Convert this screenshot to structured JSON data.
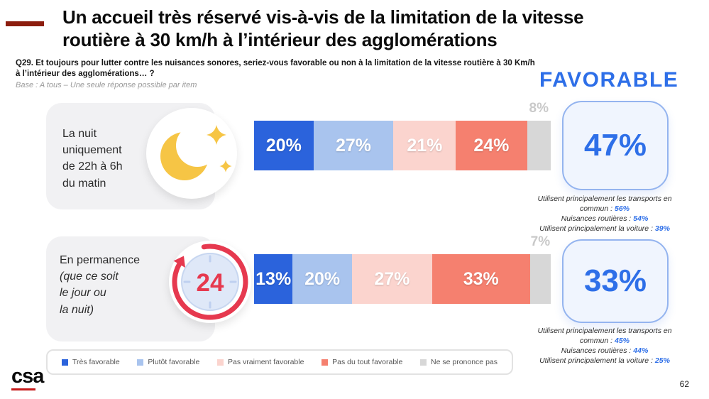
{
  "page": {
    "title_line1": "Un accueil très réservé vis-à-vis de la limitation de la vitesse",
    "title_line2": "routière à 30 km/h à l’intérieur des agglomérations",
    "question_line1": "Q29. Et toujours pour lutter contre les nuisances sonores, seriez-vous favorable ou non à la limitation de la vitesse routière à 30 Km/h",
    "question_line2": "à l’intérieur des agglomérations… ?",
    "base_note": "Base : A tous – Une seule réponse possible par item",
    "favorable_heading": "FAVORABLE",
    "logo_text": "csa",
    "page_number": "62"
  },
  "colors": {
    "accent_bar_red": "#8C1D0E",
    "favorable_blue": "#2E6FE8",
    "nsp_label_gray": "#C9C9C9",
    "row_box_gray": "#F1F1F3",
    "moon_yellow": "#F6C545",
    "clock_red": "#E6394F"
  },
  "chart_data": {
    "type": "bar",
    "stacked": true,
    "orientation": "horizontal",
    "unit": "%",
    "legend": [
      "Très favorable",
      "Plutôt favorable",
      "Pas vraiment favorable",
      "Pas du tout favorable",
      "Ne se prononce pas"
    ],
    "segment_colors": [
      "#2B63DC",
      "#A9C4EE",
      "#FBD4CE",
      "#F5806F",
      "#D7D7D7"
    ],
    "rows": [
      {
        "label_lines": [
          "La nuit",
          "uniquement",
          "de 22h à 6h",
          "du matin"
        ],
        "icon": "crescent-moon-with-stars",
        "values": [
          20,
          27,
          21,
          24,
          8
        ],
        "value_labels": [
          "20%",
          "27%",
          "21%",
          "24%",
          "8%"
        ],
        "favorable_total": "47%",
        "notes": [
          {
            "text": "Utilisent principalement les transports en commun :",
            "value": "56%"
          },
          {
            "text": "Nuisances routières :",
            "value": "54%"
          },
          {
            "text": "Utilisent principalement la voiture :",
            "value": "39%"
          }
        ]
      },
      {
        "label_main": "En permanence",
        "label_sub_lines": [
          "(que ce soit",
          "le jour ou",
          "la nuit)"
        ],
        "icon": "24h-clock-arrow",
        "values": [
          13,
          20,
          27,
          33,
          7
        ],
        "value_labels": [
          "13%",
          "20%",
          "27%",
          "33%",
          "7%"
        ],
        "favorable_total": "33%",
        "notes": [
          {
            "text": "Utilisent principalement les transports en commun :",
            "value": "45%"
          },
          {
            "text": "Nuisances routières :",
            "value": "44%"
          },
          {
            "text": "Utilisent principalement la voiture :",
            "value": "25%"
          }
        ]
      }
    ]
  }
}
